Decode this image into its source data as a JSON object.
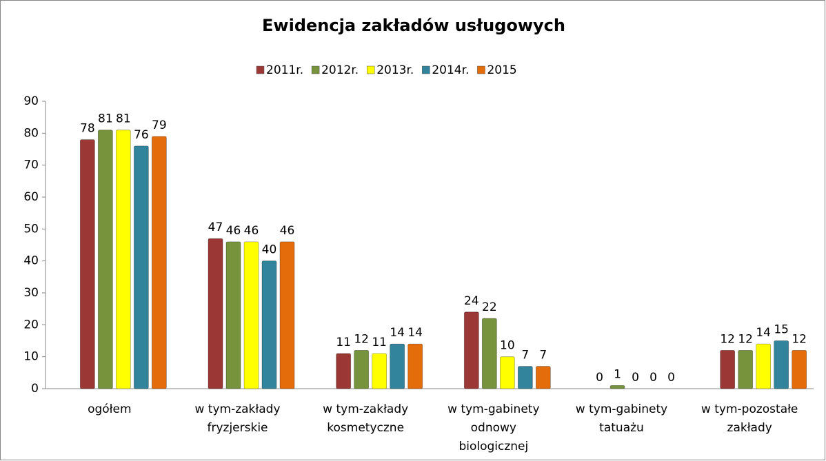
{
  "chart_data": {
    "type": "bar",
    "title": "Ewidencja zakładów usługowych",
    "categories": [
      [
        "ogółem"
      ],
      [
        "w tym-zakłady",
        "fryzjerskie"
      ],
      [
        "w tym-zakłady",
        "kosmetyczne"
      ],
      [
        "w tym-gabinety",
        "odnowy",
        "biologicznej"
      ],
      [
        "w tym-gabinety",
        "tatuażu"
      ],
      [
        "w tym-pozostałe",
        "zakłady"
      ]
    ],
    "series": [
      {
        "name": "2011r.",
        "color": "#9b3836",
        "values": [
          78,
          47,
          11,
          24,
          0,
          12
        ]
      },
      {
        "name": "2012r.",
        "color": "#77933c",
        "values": [
          81,
          46,
          12,
          22,
          1,
          12
        ]
      },
      {
        "name": "2013r.",
        "color": "#ffff00",
        "values": [
          81,
          46,
          11,
          10,
          0,
          14
        ]
      },
      {
        "name": "2014r.",
        "color": "#31849b",
        "values": [
          76,
          40,
          14,
          7,
          0,
          15
        ]
      },
      {
        "name": "2015",
        "color": "#e46c0a",
        "values": [
          79,
          46,
          14,
          7,
          0,
          12
        ]
      }
    ],
    "ylim": [
      0,
      90
    ],
    "yticks": [
      0,
      10,
      20,
      30,
      40,
      50,
      60,
      70,
      80,
      90
    ],
    "legend": "top"
  }
}
